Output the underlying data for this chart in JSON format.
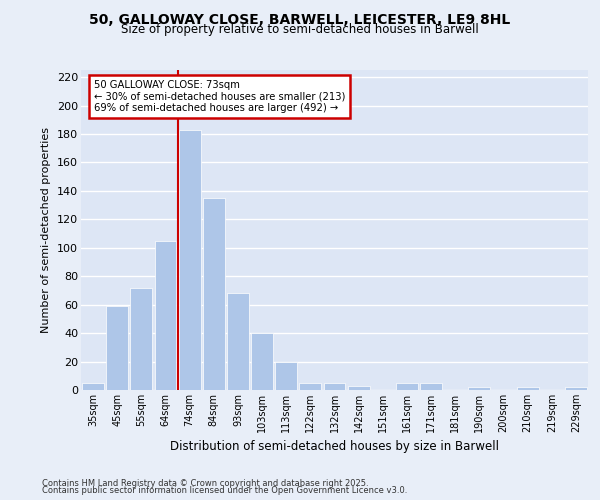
{
  "title_line1": "50, GALLOWAY CLOSE, BARWELL, LEICESTER, LE9 8HL",
  "title_line2": "Size of property relative to semi-detached houses in Barwell",
  "xlabel": "Distribution of semi-detached houses by size in Barwell",
  "ylabel": "Number of semi-detached properties",
  "categories": [
    "35sqm",
    "45sqm",
    "55sqm",
    "64sqm",
    "74sqm",
    "84sqm",
    "93sqm",
    "103sqm",
    "113sqm",
    "122sqm",
    "132sqm",
    "142sqm",
    "151sqm",
    "161sqm",
    "171sqm",
    "181sqm",
    "190sqm",
    "200sqm",
    "210sqm",
    "219sqm",
    "229sqm"
  ],
  "values": [
    5,
    59,
    72,
    105,
    183,
    135,
    68,
    40,
    20,
    5,
    5,
    3,
    0,
    5,
    5,
    0,
    2,
    0,
    2,
    0,
    2
  ],
  "bar_color": "#aec6e8",
  "bar_edge_color": "#ffffff",
  "vline_x_index": 4,
  "vline_color": "#cc0000",
  "annotation_title": "50 GALLOWAY CLOSE: 73sqm",
  "annotation_line1": "← 30% of semi-detached houses are smaller (213)",
  "annotation_line2": "69% of semi-detached houses are larger (492) →",
  "annotation_box_color": "#cc0000",
  "annotation_bg": "#ffffff",
  "ylim": [
    0,
    225
  ],
  "yticks": [
    0,
    20,
    40,
    60,
    80,
    100,
    120,
    140,
    160,
    180,
    200,
    220
  ],
  "background_color": "#dde6f5",
  "grid_color": "#ffffff",
  "fig_bg_color": "#e8eef8",
  "footnote1": "Contains HM Land Registry data © Crown copyright and database right 2025.",
  "footnote2": "Contains public sector information licensed under the Open Government Licence v3.0."
}
